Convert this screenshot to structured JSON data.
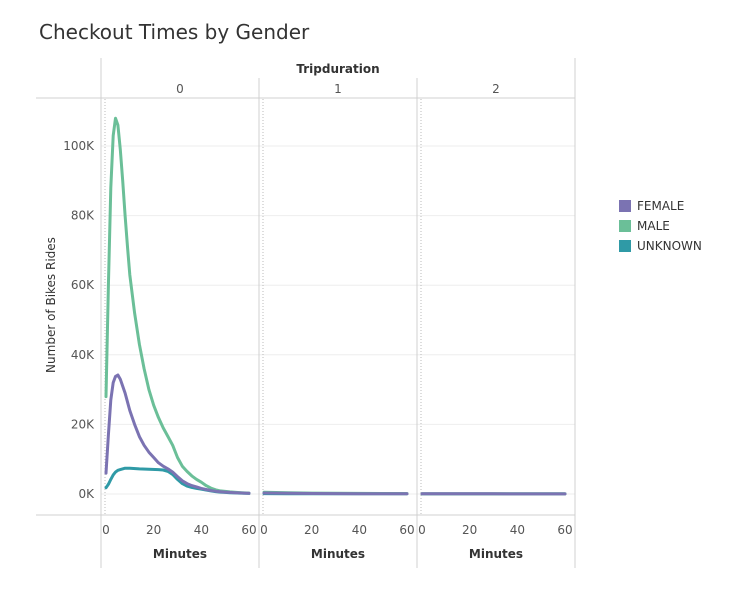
{
  "chart_data": {
    "type": "line",
    "title": "Checkout Times by Gender",
    "column_header": "Tripduration",
    "panels": [
      "0",
      "1",
      "2"
    ],
    "xlabel": "Minutes",
    "ylabel": "Number of Bikes Rides",
    "xticks": [
      "0",
      "20",
      "40",
      "60"
    ],
    "yticks": [
      "0K",
      "20K",
      "40K",
      "60K",
      "80K",
      "100K"
    ],
    "xlim": [
      0,
      60
    ],
    "ylim": [
      0,
      110000
    ],
    "grid": true,
    "legend_position": "right",
    "series": [
      {
        "name": "FEMALE",
        "color": "#7b73b2",
        "panels": [
          [
            [
              0,
              6000
            ],
            [
              1,
              17000
            ],
            [
              2,
              27000
            ],
            [
              3,
              32000
            ],
            [
              4,
              33800
            ],
            [
              5,
              34200
            ],
            [
              6,
              33000
            ],
            [
              8,
              29000
            ],
            [
              10,
              24000
            ],
            [
              12,
              20000
            ],
            [
              14,
              16500
            ],
            [
              16,
              14000
            ],
            [
              18,
              12000
            ],
            [
              20,
              10500
            ],
            [
              22,
              9000
            ],
            [
              24,
              8000
            ],
            [
              26,
              7200
            ],
            [
              28,
              6300
            ],
            [
              30,
              5000
            ],
            [
              32,
              3800
            ],
            [
              34,
              3000
            ],
            [
              36,
              2400
            ],
            [
              38,
              2000
            ],
            [
              40,
              1600
            ],
            [
              42,
              1300
            ],
            [
              44,
              1000
            ],
            [
              46,
              800
            ],
            [
              48,
              650
            ],
            [
              50,
              550
            ],
            [
              52,
              450
            ],
            [
              54,
              380
            ],
            [
              56,
              320
            ],
            [
              58,
              260
            ],
            [
              60,
              200
            ]
          ],
          [
            [
              0,
              300
            ],
            [
              10,
              200
            ],
            [
              20,
              150
            ],
            [
              30,
              120
            ],
            [
              40,
              100
            ],
            [
              50,
              90
            ],
            [
              60,
              80
            ]
          ],
          [
            [
              0,
              60
            ],
            [
              10,
              55
            ],
            [
              20,
              50
            ],
            [
              30,
              45
            ],
            [
              40,
              40
            ],
            [
              50,
              38
            ],
            [
              60,
              35
            ]
          ]
        ]
      },
      {
        "name": "MALE",
        "color": "#6bbf98",
        "panels": [
          [
            [
              0,
              28000
            ],
            [
              1,
              60000
            ],
            [
              2,
              88000
            ],
            [
              3,
              103000
            ],
            [
              4,
              108000
            ],
            [
              5,
              106000
            ],
            [
              6,
              99000
            ],
            [
              7,
              90000
            ],
            [
              8,
              80000
            ],
            [
              9,
              71000
            ],
            [
              10,
              63000
            ],
            [
              12,
              52000
            ],
            [
              14,
              43000
            ],
            [
              16,
              36000
            ],
            [
              18,
              30000
            ],
            [
              20,
              25500
            ],
            [
              22,
              22000
            ],
            [
              24,
              19000
            ],
            [
              26,
              16500
            ],
            [
              28,
              14000
            ],
            [
              30,
              10500
            ],
            [
              32,
              8000
            ],
            [
              34,
              6500
            ],
            [
              36,
              5200
            ],
            [
              38,
              4200
            ],
            [
              40,
              3400
            ],
            [
              42,
              2400
            ],
            [
              44,
              1700
            ],
            [
              46,
              1200
            ],
            [
              48,
              900
            ],
            [
              50,
              750
            ],
            [
              52,
              600
            ],
            [
              54,
              500
            ],
            [
              56,
              400
            ],
            [
              58,
              330
            ],
            [
              60,
              260
            ]
          ],
          [
            [
              0,
              500
            ],
            [
              10,
              350
            ],
            [
              20,
              250
            ],
            [
              30,
              200
            ],
            [
              40,
              160
            ],
            [
              50,
              140
            ],
            [
              60,
              120
            ]
          ],
          [
            [
              0,
              90
            ],
            [
              10,
              80
            ],
            [
              20,
              70
            ],
            [
              30,
              60
            ],
            [
              40,
              55
            ],
            [
              50,
              50
            ],
            [
              60,
              45
            ]
          ]
        ]
      },
      {
        "name": "UNKNOWN",
        "color": "#2f9aa6",
        "panels": [
          [
            [
              0,
              1800
            ],
            [
              1,
              2800
            ],
            [
              2,
              4200
            ],
            [
              3,
              5500
            ],
            [
              4,
              6300
            ],
            [
              5,
              6800
            ],
            [
              6,
              7000
            ],
            [
              8,
              7400
            ],
            [
              10,
              7400
            ],
            [
              14,
              7200
            ],
            [
              18,
              7100
            ],
            [
              22,
              7000
            ],
            [
              24,
              6900
            ],
            [
              26,
              6500
            ],
            [
              28,
              5600
            ],
            [
              30,
              4200
            ],
            [
              32,
              3000
            ],
            [
              34,
              2300
            ],
            [
              36,
              1900
            ],
            [
              38,
              1600
            ],
            [
              40,
              1400
            ],
            [
              42,
              1150
            ],
            [
              44,
              900
            ],
            [
              46,
              700
            ],
            [
              48,
              550
            ],
            [
              50,
              450
            ],
            [
              52,
              380
            ],
            [
              54,
              320
            ],
            [
              56,
              270
            ],
            [
              58,
              220
            ],
            [
              60,
              180
            ]
          ],
          [
            [
              0,
              120
            ],
            [
              10,
              100
            ],
            [
              20,
              90
            ],
            [
              30,
              80
            ],
            [
              40,
              70
            ],
            [
              50,
              65
            ],
            [
              60,
              60
            ]
          ],
          [
            [
              0,
              30
            ],
            [
              10,
              28
            ],
            [
              20,
              26
            ],
            [
              30,
              24
            ],
            [
              40,
              22
            ],
            [
              50,
              20
            ],
            [
              60,
              20
            ]
          ]
        ]
      }
    ]
  }
}
